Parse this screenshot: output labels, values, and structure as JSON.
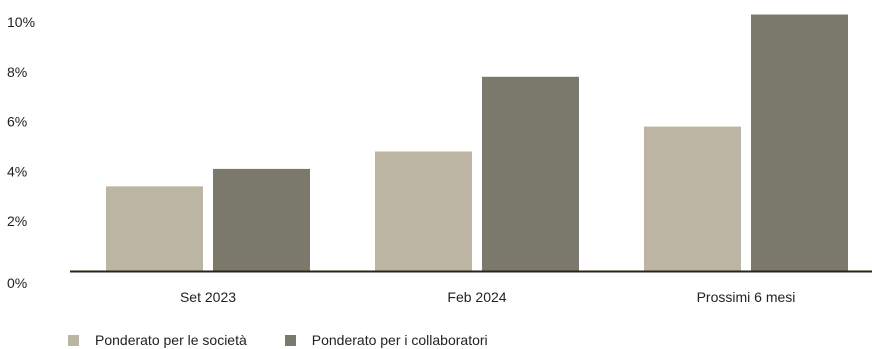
{
  "chart_data": {
    "type": "bar",
    "categories": [
      "Set 2023",
      "Feb 2024",
      "Prossimi 6 mesi"
    ],
    "series": [
      {
        "name": "Ponderato per le società",
        "color": "#bdb5a4",
        "values": [
          3.4,
          4.8,
          5.8
        ]
      },
      {
        "name": "Ponderato per i collaboratori",
        "color": "#7b796b",
        "values": [
          4.1,
          7.8,
          10.3
        ]
      }
    ],
    "ylim": [
      0,
      10
    ],
    "yticks": [
      0,
      2,
      4,
      6,
      8,
      10
    ],
    "ytick_labels": [
      "0%",
      "2%",
      "4%",
      "6%",
      "8%",
      "10%"
    ],
    "grid": false,
    "legend_position": "bottom-left",
    "axis_color": "#2b2414"
  }
}
